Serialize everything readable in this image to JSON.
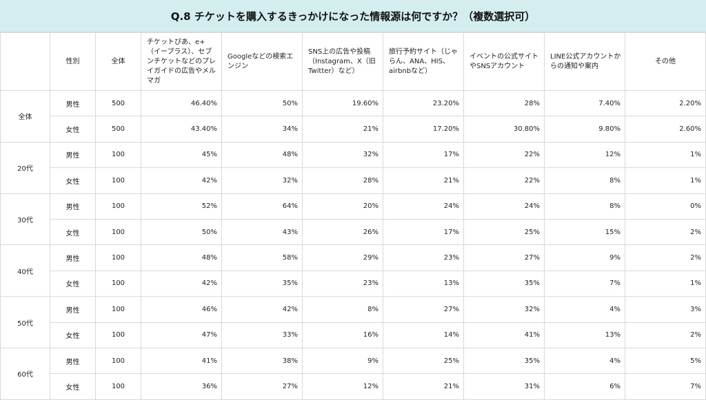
{
  "title": "Q.8 チケットを購入するきっかけになった情報源は何ですか？（複数選択可）",
  "headers": {
    "group": "",
    "sex": "性別",
    "total": "全体",
    "cols": [
      "チケットぴあ、e+（イープラス）、セブンチケットなどのプレイガイドの広告やメルマガ",
      "Googleなどの検索エンジン",
      "SNS上の広告や投稿（Instagram、X（旧Twitter）など）",
      "旅行予約サイト（じゃらん、ANA、HIS、airbnbなど）",
      "イベントの公式サイトやSNSアカウント",
      "LINE公式アカウントからの通知や案内",
      "その他"
    ]
  },
  "groups": [
    {
      "label": "全体",
      "rows": [
        {
          "sex": "男性",
          "total": "500",
          "values": [
            "46.40%",
            "50%",
            "19.60%",
            "23.20%",
            "28%",
            "7.40%",
            "2.20%"
          ]
        },
        {
          "sex": "女性",
          "total": "500",
          "values": [
            "43.40%",
            "34%",
            "21%",
            "17.20%",
            "30.80%",
            "9.80%",
            "2.60%"
          ]
        }
      ]
    },
    {
      "label": "20代",
      "rows": [
        {
          "sex": "男性",
          "total": "100",
          "values": [
            "45%",
            "48%",
            "32%",
            "17%",
            "22%",
            "12%",
            "1%"
          ]
        },
        {
          "sex": "女性",
          "total": "100",
          "values": [
            "42%",
            "32%",
            "28%",
            "21%",
            "22%",
            "8%",
            "1%"
          ]
        }
      ]
    },
    {
      "label": "30代",
      "rows": [
        {
          "sex": "男性",
          "total": "100",
          "values": [
            "52%",
            "64%",
            "20%",
            "24%",
            "24%",
            "8%",
            "0%"
          ]
        },
        {
          "sex": "女性",
          "total": "100",
          "values": [
            "50%",
            "43%",
            "26%",
            "17%",
            "25%",
            "15%",
            "2%"
          ]
        }
      ]
    },
    {
      "label": "40代",
      "rows": [
        {
          "sex": "男性",
          "total": "100",
          "values": [
            "48%",
            "58%",
            "29%",
            "23%",
            "27%",
            "9%",
            "2%"
          ]
        },
        {
          "sex": "女性",
          "total": "100",
          "values": [
            "42%",
            "35%",
            "23%",
            "13%",
            "35%",
            "7%",
            "1%"
          ]
        }
      ]
    },
    {
      "label": "50代",
      "rows": [
        {
          "sex": "男性",
          "total": "100",
          "values": [
            "46%",
            "42%",
            "8%",
            "27%",
            "32%",
            "4%",
            "3%"
          ]
        },
        {
          "sex": "女性",
          "total": "100",
          "values": [
            "47%",
            "33%",
            "16%",
            "14%",
            "41%",
            "13%",
            "2%"
          ]
        }
      ]
    },
    {
      "label": "60代",
      "rows": [
        {
          "sex": "男性",
          "total": "100",
          "values": [
            "41%",
            "38%",
            "9%",
            "25%",
            "35%",
            "4%",
            "5%"
          ]
        },
        {
          "sex": "女性",
          "total": "100",
          "values": [
            "36%",
            "27%",
            "12%",
            "21%",
            "31%",
            "6%",
            "7%"
          ]
        }
      ]
    }
  ]
}
